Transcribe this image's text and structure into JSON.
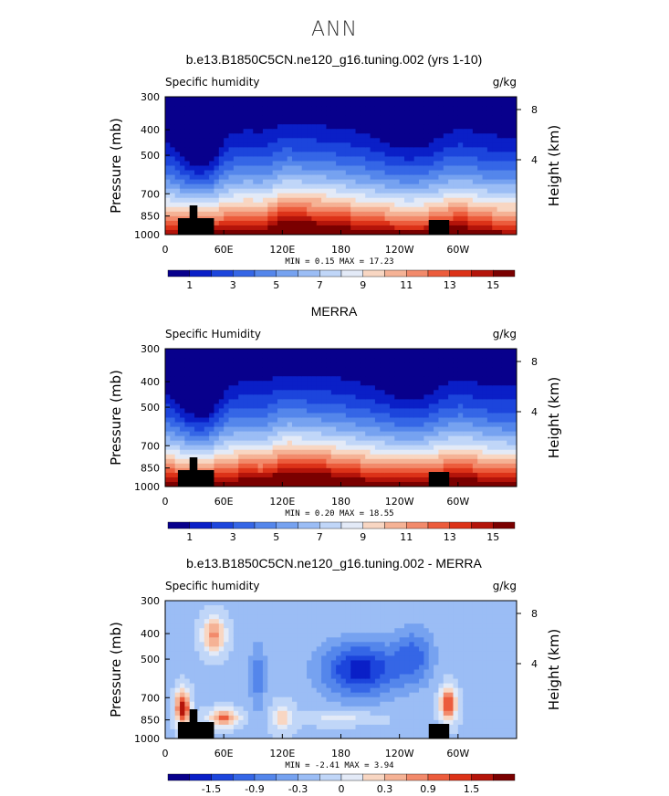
{
  "figure": {
    "season": "ANN"
  },
  "colors": {
    "levels": [
      "#08008c",
      "#0a1fc7",
      "#1c45dc",
      "#3566e6",
      "#5486eb",
      "#76a2f0",
      "#9bbdf5",
      "#c0d6f8",
      "#e3eaf7",
      "#f8d6c2",
      "#f5b295",
      "#f28a6b",
      "#ec5c3c",
      "#dc3218",
      "#b4140a",
      "#7a0000"
    ],
    "background": "#ffffff"
  },
  "chart_data": [
    {
      "type": "heatmap",
      "title": "b.e13.B1850C5CN.ne120_g16.tuning.002 (yrs 1-10)",
      "left_label": "Specific humidity",
      "right_label": "g/kg",
      "ylabel": "Pressure (mb)",
      "y2label": "Height (km)",
      "y_ticks": [
        "300",
        "400",
        "500",
        "700",
        "850",
        "1000"
      ],
      "y2_ticks": [
        "8",
        "4"
      ],
      "x_ticks": [
        "0",
        "60E",
        "120E",
        "180",
        "120W",
        "60W"
      ],
      "stats": "MIN =    0.15   MAX =   17.23",
      "colorbar_labels": [
        "1",
        "3",
        "5",
        "7",
        "9",
        "11",
        "13",
        "15"
      ],
      "min": 0.15,
      "max": 17.23,
      "xlim": [
        0,
        360
      ],
      "ylim": [
        1000,
        300
      ]
    },
    {
      "type": "heatmap",
      "title": "MERRA",
      "left_label": "Specific Humidity",
      "right_label": "g/kg",
      "ylabel": "Pressure (mb)",
      "y2label": "Height (km)",
      "y_ticks": [
        "300",
        "400",
        "500",
        "700",
        "850",
        "1000"
      ],
      "y2_ticks": [
        "8",
        "4"
      ],
      "x_ticks": [
        "0",
        "60E",
        "120E",
        "180",
        "120W",
        "60W"
      ],
      "stats": "MIN =    0.20   MAX =   18.55",
      "colorbar_labels": [
        "1",
        "3",
        "5",
        "7",
        "9",
        "11",
        "13",
        "15"
      ],
      "min": 0.2,
      "max": 18.55,
      "xlim": [
        0,
        360
      ],
      "ylim": [
        1000,
        300
      ]
    },
    {
      "type": "heatmap",
      "title": "b.e13.B1850C5CN.ne120_g16.tuning.002 - MERRA",
      "left_label": "Specific humidity",
      "right_label": "g/kg",
      "ylabel": "Pressure (mb)",
      "y2label": "Height (km)",
      "y_ticks": [
        "300",
        "400",
        "500",
        "700",
        "850",
        "1000"
      ],
      "y2_ticks": [
        "8",
        "4"
      ],
      "x_ticks": [
        "0",
        "60E",
        "120E",
        "180",
        "120W",
        "60W"
      ],
      "stats": "MIN =   -2.41   MAX =    3.94",
      "colorbar_labels": [
        "-1.5",
        "-0.9",
        "-0.3",
        "0",
        "0.3",
        "0.9",
        "1.5"
      ],
      "min": -2.41,
      "max": 3.94,
      "xlim": [
        0,
        360
      ],
      "ylim": [
        1000,
        300
      ]
    }
  ]
}
